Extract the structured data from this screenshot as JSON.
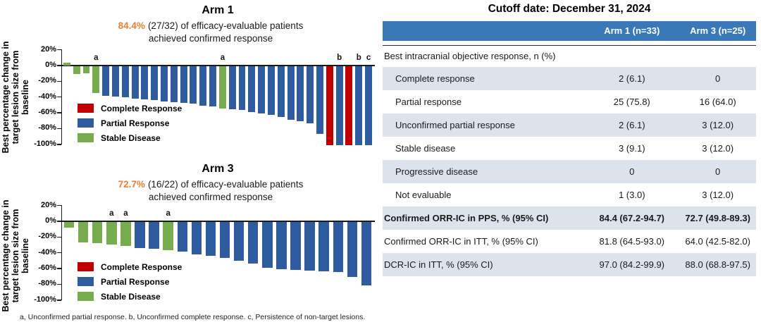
{
  "colors": {
    "CR": "#C00000",
    "PR": "#2E5C9E",
    "SD": "#77AD4E",
    "accent_orange": "#ED7D31",
    "table_header_bg": "#3A79B8",
    "table_stripe_bg": "#DCE3ED"
  },
  "legend": [
    {
      "key": "CR",
      "label": "Complete Response"
    },
    {
      "key": "PR",
      "label": "Partial Response"
    },
    {
      "key": "SD",
      "label": "Stable Disease"
    }
  ],
  "footnote": "a, Unconfirmed partial response. b, Unconfirmed complete response. c, Persistence of non-target lesions.",
  "chart_data": [
    {
      "type": "bar",
      "title": "Arm 1",
      "subtitle_highlight": "84.4%",
      "subtitle_rest": "(27/32) of efficacy-evaluable patients",
      "subtitle_line2": "achieved confirmed response",
      "ylabel": "Best percentage change in\ntarget lesion size from\nbaseline",
      "ylim": [
        -100,
        20
      ],
      "yticks": [
        20,
        0,
        -20,
        -40,
        -60,
        -80,
        -100
      ],
      "ytick_labels": [
        "20%",
        "0%",
        "-20%",
        "-40%",
        "-60%",
        "-80%",
        "-100%"
      ],
      "grid": false,
      "legend_position": "inside-lower-left",
      "bars": [
        {
          "value": 4,
          "response": "SD"
        },
        {
          "value": -10,
          "response": "SD"
        },
        {
          "value": -9,
          "response": "SD"
        },
        {
          "value": -34,
          "response": "SD",
          "note": "a"
        },
        {
          "value": -38,
          "response": "PR"
        },
        {
          "value": -39,
          "response": "PR"
        },
        {
          "value": -40,
          "response": "PR"
        },
        {
          "value": -41,
          "response": "PR"
        },
        {
          "value": -42,
          "response": "PR"
        },
        {
          "value": -43,
          "response": "PR"
        },
        {
          "value": -45,
          "response": "PR"
        },
        {
          "value": -46,
          "response": "PR"
        },
        {
          "value": -47,
          "response": "PR"
        },
        {
          "value": -48,
          "response": "PR"
        },
        {
          "value": -50,
          "response": "PR"
        },
        {
          "value": -51,
          "response": "PR"
        },
        {
          "value": -54,
          "response": "SD",
          "note": "a"
        },
        {
          "value": -55,
          "response": "PR"
        },
        {
          "value": -56,
          "response": "PR"
        },
        {
          "value": -58,
          "response": "PR"
        },
        {
          "value": -60,
          "response": "PR"
        },
        {
          "value": -62,
          "response": "PR"
        },
        {
          "value": -65,
          "response": "PR"
        },
        {
          "value": -68,
          "response": "PR"
        },
        {
          "value": -70,
          "response": "PR"
        },
        {
          "value": -73,
          "response": "PR"
        },
        {
          "value": -86,
          "response": "PR"
        },
        {
          "value": -100,
          "response": "CR"
        },
        {
          "value": -100,
          "response": "PR",
          "note": "b"
        },
        {
          "value": -100,
          "response": "CR"
        },
        {
          "value": -100,
          "response": "PR",
          "note": "b"
        },
        {
          "value": -100,
          "response": "PR",
          "note": "c"
        }
      ]
    },
    {
      "type": "bar",
      "title": "Arm 3",
      "subtitle_highlight": "72.7%",
      "subtitle_rest": "(16/22) of efficacy-evaluable patients",
      "subtitle_line2": "achieved confirmed response",
      "ylabel": "Best percentage change in\ntarget lesion size from\nbaseline",
      "ylim": [
        -100,
        20
      ],
      "yticks": [
        20,
        0,
        -20,
        -40,
        -60,
        -80,
        -100
      ],
      "ytick_labels": [
        "20%",
        "0%",
        "-20%",
        "-40%",
        "-60%",
        "-80%",
        "-100%"
      ],
      "grid": false,
      "legend_position": "inside-lower-left",
      "bars": [
        {
          "value": -7,
          "response": "SD"
        },
        {
          "value": -26,
          "response": "SD"
        },
        {
          "value": -27,
          "response": "SD"
        },
        {
          "value": -29,
          "response": "SD",
          "note": "a"
        },
        {
          "value": -31,
          "response": "SD",
          "note": "a"
        },
        {
          "value": -33,
          "response": "PR"
        },
        {
          "value": -34,
          "response": "PR"
        },
        {
          "value": -36,
          "response": "SD",
          "note": "a"
        },
        {
          "value": -38,
          "response": "PR"
        },
        {
          "value": -41,
          "response": "PR"
        },
        {
          "value": -43,
          "response": "PR"
        },
        {
          "value": -46,
          "response": "PR"
        },
        {
          "value": -49,
          "response": "PR"
        },
        {
          "value": -53,
          "response": "PR"
        },
        {
          "value": -58,
          "response": "PR"
        },
        {
          "value": -60,
          "response": "PR"
        },
        {
          "value": -61,
          "response": "PR"
        },
        {
          "value": -62,
          "response": "PR"
        },
        {
          "value": -63,
          "response": "PR"
        },
        {
          "value": -64,
          "response": "PR"
        },
        {
          "value": -70,
          "response": "PR"
        },
        {
          "value": -81,
          "response": "PR"
        }
      ]
    }
  ],
  "table": {
    "title": "Cutoff date: December 31, 2024",
    "columns": [
      "",
      "Arm 1 (n=33)",
      "Arm 3 (n=25)"
    ],
    "section_header": "Best intracranial objective response, n (%)",
    "rows": [
      {
        "label": "Complete response",
        "arm1": "2 (6.1)",
        "arm3": "0",
        "sub": true,
        "bold": false
      },
      {
        "label": "Partial response",
        "arm1": "25 (75.8)",
        "arm3": "16 (64.0)",
        "sub": true,
        "bold": false
      },
      {
        "label": "Unconfirmed partial response",
        "arm1": "2 (6.1)",
        "arm3": "3 (12.0)",
        "sub": true,
        "bold": false
      },
      {
        "label": "Stable disease",
        "arm1": "3 (9.1)",
        "arm3": "3 (12.0)",
        "sub": true,
        "bold": false
      },
      {
        "label": "Progressive disease",
        "arm1": "0",
        "arm3": "0",
        "sub": true,
        "bold": false
      },
      {
        "label": "Not evaluable",
        "arm1": "1 (3.0)",
        "arm3": "3 (12.0)",
        "sub": true,
        "bold": false
      },
      {
        "label": "Confirmed ORR-IC in PPS, % (95% CI)",
        "arm1": "84.4 (67.2-94.7)",
        "arm3": "72.7 (49.8-89.3)",
        "sub": false,
        "bold": true
      },
      {
        "label": "Confirmed ORR-IC in ITT, % (95% CI)",
        "arm1": "81.8 (64.5-93.0)",
        "arm3": "64.0 (42.5-82.0)",
        "sub": false,
        "bold": false
      },
      {
        "label": "DCR-IC in ITT, % (95% CI)",
        "arm1": "97.0 (84.2-99.9)",
        "arm3": "88.0 (68.8-97.5)",
        "sub": false,
        "bold": false
      }
    ]
  }
}
